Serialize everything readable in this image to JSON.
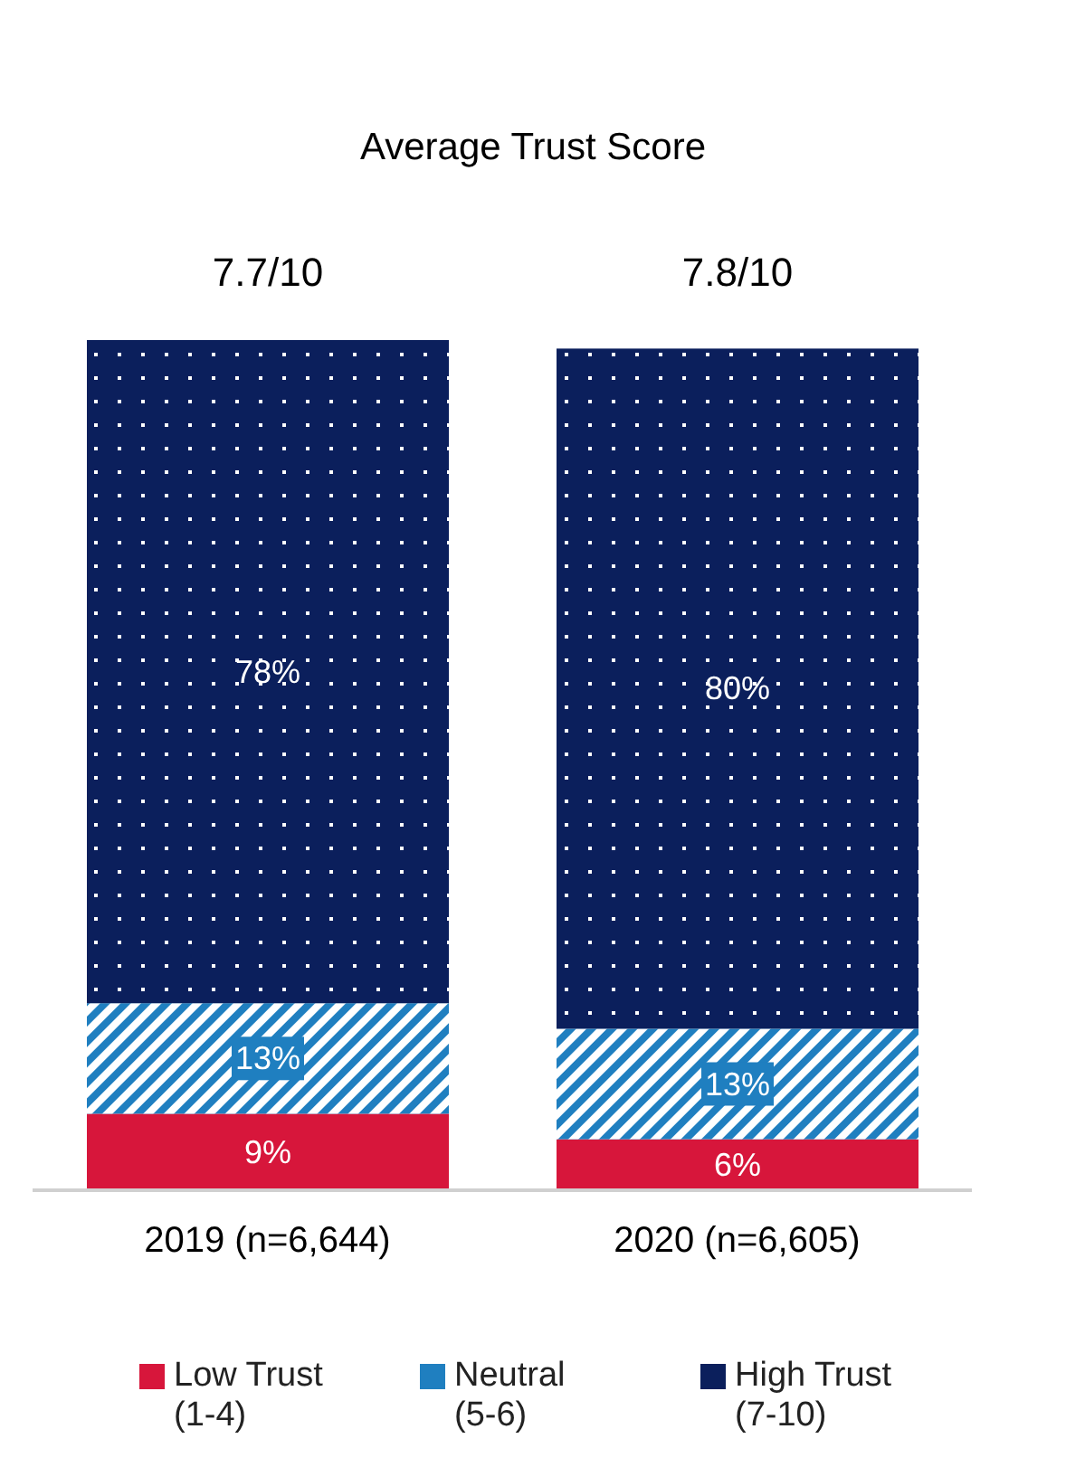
{
  "chart_data": {
    "type": "bar",
    "stacked": true,
    "title": "Average Trust Score",
    "categories": [
      "2019 (n=6,644)",
      "2020 (n=6,605)"
    ],
    "series": [
      {
        "name": "Low Trust (1-4)",
        "color": "#d7163b",
        "values": [
          9,
          6
        ],
        "value_labels": [
          "9%",
          "6%"
        ]
      },
      {
        "name": "Neutral (5-6)",
        "color": "#1f7fc0",
        "values": [
          13,
          13
        ],
        "value_labels": [
          "13%",
          "13%"
        ]
      },
      {
        "name": "High Trust (7-10)",
        "color": "#0b1f5c",
        "values": [
          78,
          80
        ],
        "value_labels": [
          "78%",
          "80%"
        ]
      }
    ],
    "annotations": [
      "7.7/10",
      "7.8/10"
    ],
    "tick_labels": "x",
    "legend": "bottom"
  }
}
